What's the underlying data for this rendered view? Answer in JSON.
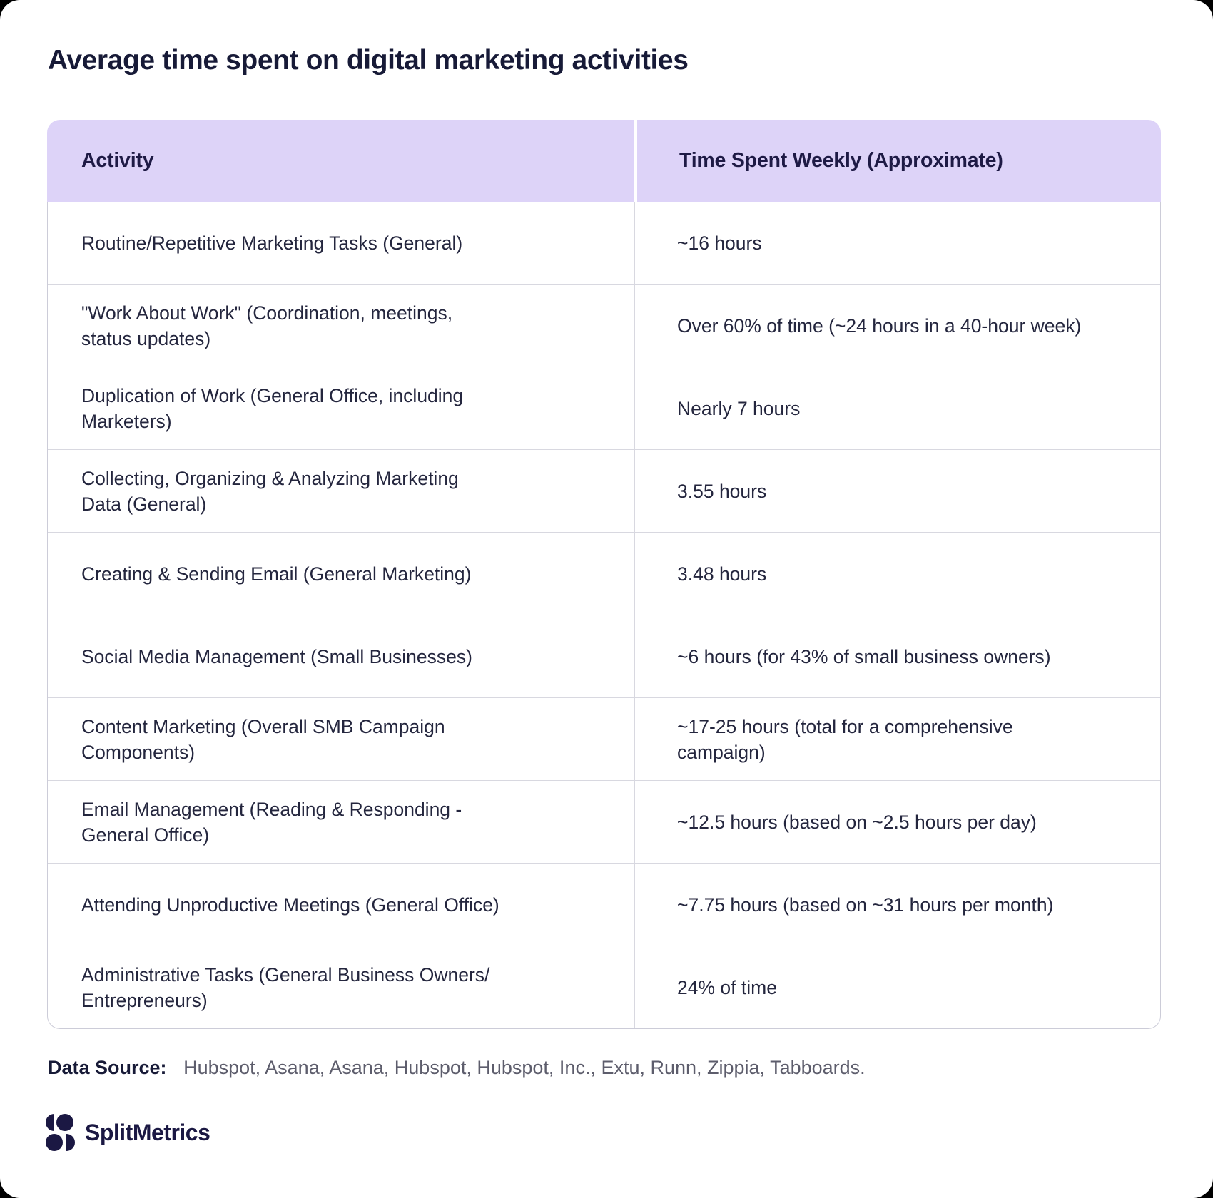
{
  "chart_data": {
    "type": "table",
    "title": "Average time spent on digital marketing activities",
    "columns": [
      "Activity",
      "Time Spent Weekly (Approximate)"
    ],
    "rows": [
      [
        "Routine/Repetitive Marketing Tasks (General)",
        "~16 hours"
      ],
      [
        "\"Work About Work\" (Coordination, meetings, status updates)",
        "Over 60% of time (~24 hours in a 40-hour week)"
      ],
      [
        "Duplication of Work (General Office, including Marketers)",
        "Nearly 7 hours"
      ],
      [
        "Collecting, Organizing & Analyzing Marketing Data (General)",
        "3.55 hours"
      ],
      [
        "Creating & Sending Email (General Marketing)",
        "3.48 hours"
      ],
      [
        "Social Media Management (Small Businesses)",
        "~6 hours (for 43% of small business owners)"
      ],
      [
        "Content Marketing (Overall SMB Campaign Components)",
        "~17-25 hours (total for a comprehensive campaign)"
      ],
      [
        "Email Management (Reading & Responding - General Office)",
        "~12.5 hours (based on ~2.5 hours per day)"
      ],
      [
        "Attending Unproductive Meetings (General Office)",
        "~7.75 hours (based on ~31 hours per month)"
      ],
      [
        "Administrative Tasks (General Business Owners/ Entrepreneurs)",
        "24% of time"
      ]
    ],
    "legend": "none",
    "grid": "row and column dividers"
  },
  "footer": {
    "data_source_label": "Data Source:",
    "data_sources": "Hubspot, Asana, Asana, Hubspot, Hubspot, Inc., Extu, Runn, Zippia, Tabboards."
  },
  "logo": {
    "text": "SplitMetrics"
  },
  "colors": {
    "page_behind": "#000000",
    "card_bg": "#ffffff",
    "header_bg": "#ddd3f8",
    "header_text": "#1e1a45",
    "title_text": "#171a37",
    "body_text": "#24263e",
    "muted_text": "#5d5d6c",
    "row_border": "#d8d8e0",
    "table_border": "#ccccd8",
    "logo_navy": "#1b1843"
  }
}
